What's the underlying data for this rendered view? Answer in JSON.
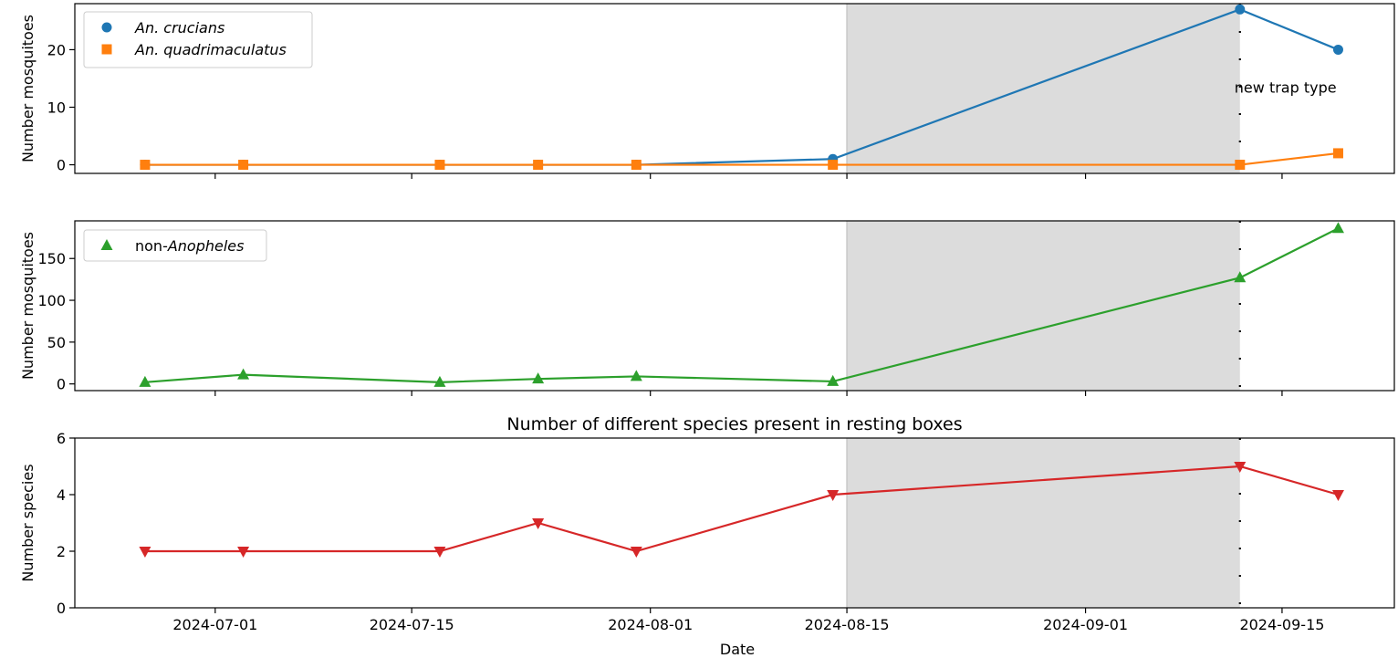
{
  "chart_data": [
    {
      "type": "line",
      "title": "",
      "xlabel": "",
      "ylabel": "Number mosquitoes",
      "ylim": [
        -1.5,
        28
      ],
      "yticks": [
        0,
        10,
        20
      ],
      "xlim": [
        "2024-06-21",
        "2024-09-23"
      ],
      "xticks": [
        "2024-07-01",
        "2024-07-15",
        "2024-08-01",
        "2024-08-15",
        "2024-09-01",
        "2024-09-15"
      ],
      "shaded_region": [
        "2024-08-15",
        "2024-09-12"
      ],
      "vertical_line": "2024-09-12",
      "annotation": {
        "text": "new trap type",
        "x": "2024-09-12",
        "y": 13.5
      },
      "legend": "top-left",
      "series": [
        {
          "name_prefix": "An.",
          "name": "crucians",
          "color": "#1f77b4",
          "marker": "circle",
          "x": [
            "2024-06-26",
            "2024-07-03",
            "2024-07-17",
            "2024-07-24",
            "2024-07-31",
            "2024-08-14",
            "2024-09-12",
            "2024-09-19"
          ],
          "values": [
            0,
            0,
            0,
            0,
            0,
            1,
            27,
            20
          ]
        },
        {
          "name_prefix": "An.",
          "name": "quadrimaculatus",
          "color": "#ff7f0e",
          "marker": "square",
          "x": [
            "2024-06-26",
            "2024-07-03",
            "2024-07-17",
            "2024-07-24",
            "2024-07-31",
            "2024-08-14",
            "2024-09-12",
            "2024-09-19"
          ],
          "values": [
            0,
            0,
            0,
            0,
            0,
            0,
            0,
            2
          ]
        }
      ]
    },
    {
      "type": "line",
      "title": "",
      "xlabel": "",
      "ylabel": "Number mosquitoes",
      "ylim": [
        -8,
        195
      ],
      "yticks": [
        0,
        50,
        100,
        150
      ],
      "xlim": [
        "2024-06-21",
        "2024-09-23"
      ],
      "xticks": [
        "2024-07-01",
        "2024-07-15",
        "2024-08-01",
        "2024-08-15",
        "2024-09-01",
        "2024-09-15"
      ],
      "shaded_region": [
        "2024-08-15",
        "2024-09-12"
      ],
      "vertical_line": "2024-09-12",
      "legend": "top-left",
      "series": [
        {
          "name_prefix": "non-",
          "name": "Anopheles",
          "color": "#2ca02c",
          "marker": "triangle-up",
          "x": [
            "2024-06-26",
            "2024-07-03",
            "2024-07-17",
            "2024-07-24",
            "2024-07-31",
            "2024-08-14",
            "2024-09-12",
            "2024-09-19"
          ],
          "values": [
            2,
            11,
            2,
            6,
            9,
            3,
            127,
            186
          ]
        }
      ]
    },
    {
      "type": "line",
      "title": "Number of different species present in resting boxes",
      "xlabel": "Date",
      "ylabel": "Number species",
      "ylim": [
        0,
        6
      ],
      "yticks": [
        0,
        2,
        4,
        6
      ],
      "xlim": [
        "2024-06-21",
        "2024-09-23"
      ],
      "xticks": [
        "2024-07-01",
        "2024-07-15",
        "2024-08-01",
        "2024-08-15",
        "2024-09-01",
        "2024-09-15"
      ],
      "shaded_region": [
        "2024-08-15",
        "2024-09-12"
      ],
      "vertical_line": "2024-09-12",
      "series": [
        {
          "name": "",
          "color": "#d62728",
          "marker": "triangle-down",
          "x": [
            "2024-06-26",
            "2024-07-03",
            "2024-07-17",
            "2024-07-24",
            "2024-07-31",
            "2024-08-14",
            "2024-09-12",
            "2024-09-19"
          ],
          "values": [
            2,
            2,
            2,
            3,
            2,
            4,
            5,
            4
          ]
        }
      ]
    }
  ]
}
